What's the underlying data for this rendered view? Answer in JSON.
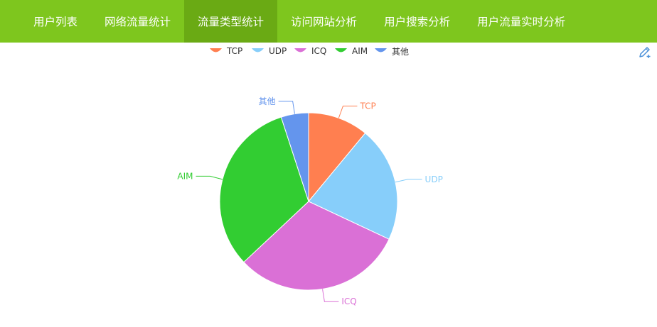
{
  "nav": {
    "items": [
      {
        "label": "用户列表",
        "active": false
      },
      {
        "label": "网络流量统计",
        "active": false
      },
      {
        "label": "流量类型统计",
        "active": true
      },
      {
        "label": "访问网站分析",
        "active": false
      },
      {
        "label": "用户搜索分析",
        "active": false
      },
      {
        "label": "用户流量实时分析",
        "active": false
      }
    ],
    "bg_color": "#7ec61e",
    "active_color": "#6aaa14"
  },
  "toolbox": {
    "icon": "pencil-edit-icon",
    "color": "#4a90d9"
  },
  "chart_data": {
    "type": "pie",
    "title": "",
    "legend_position": "top-center",
    "series": [
      {
        "name": "TCP",
        "value": 11,
        "color": "#ff7f50"
      },
      {
        "name": "UDP",
        "value": 21,
        "color": "#87cefa"
      },
      {
        "name": "ICQ",
        "value": 31,
        "color": "#da70d6"
      },
      {
        "name": "AIM",
        "value": 32,
        "color": "#32cd32"
      },
      {
        "name": "其他",
        "value": 5,
        "color": "#6495ed"
      }
    ]
  }
}
